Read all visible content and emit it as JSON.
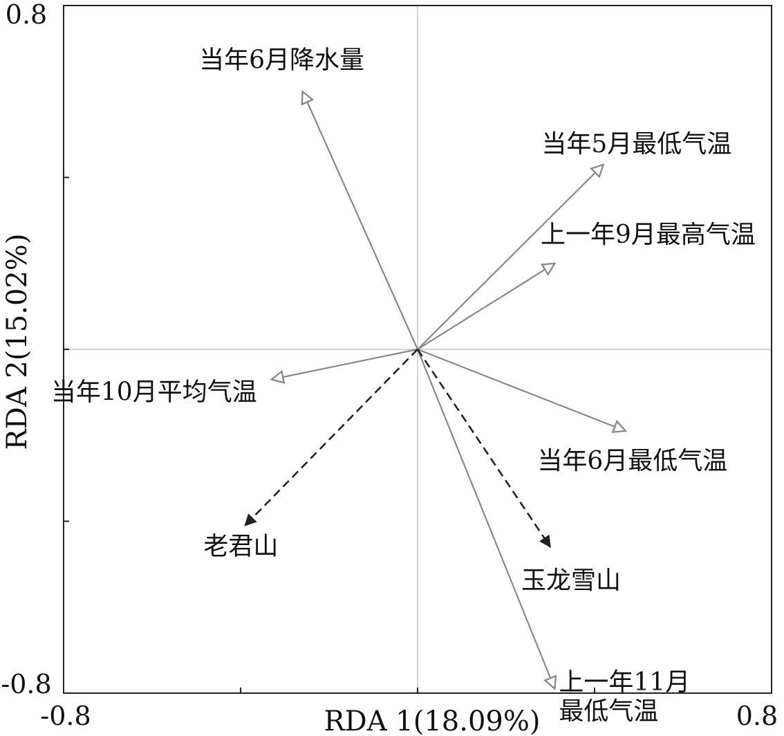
{
  "chart_data": {
    "type": "scatter",
    "xlabel": "RDA 1(18.09%)",
    "ylabel": "RDA 2(15.02%)",
    "xlim": [
      -0.8,
      0.8
    ],
    "ylim": [
      -0.8,
      0.8
    ],
    "x_tick_labels": [
      "-0.8",
      "0.8"
    ],
    "y_tick_labels": [
      "0.8",
      "-0.8"
    ],
    "reference_lines": {
      "x0": true,
      "y0": true
    },
    "colors": {
      "environment_arrow": "#888888",
      "site_arrow": "#222222",
      "reference_line": "#d4d4d4"
    },
    "environment_vectors": [
      {
        "name": "当年6月降水量",
        "x": -0.26,
        "y": 0.6
      },
      {
        "name": "当年5月最低气温",
        "x": 0.42,
        "y": 0.43
      },
      {
        "name": "上一年9月最高气温",
        "x": 0.31,
        "y": 0.2
      },
      {
        "name": "当年10月平均气温",
        "x": -0.33,
        "y": -0.07
      },
      {
        "name": "当年6月最低气温",
        "x": 0.47,
        "y": -0.19
      },
      {
        "name_lines": [
          "上一年11月",
          "最低气温"
        ],
        "x": 0.31,
        "y": -0.79
      }
    ],
    "site_vectors": [
      {
        "name": "老君山",
        "x": -0.39,
        "y": -0.41
      },
      {
        "name": "玉龙雪山",
        "x": 0.3,
        "y": -0.46
      }
    ]
  }
}
